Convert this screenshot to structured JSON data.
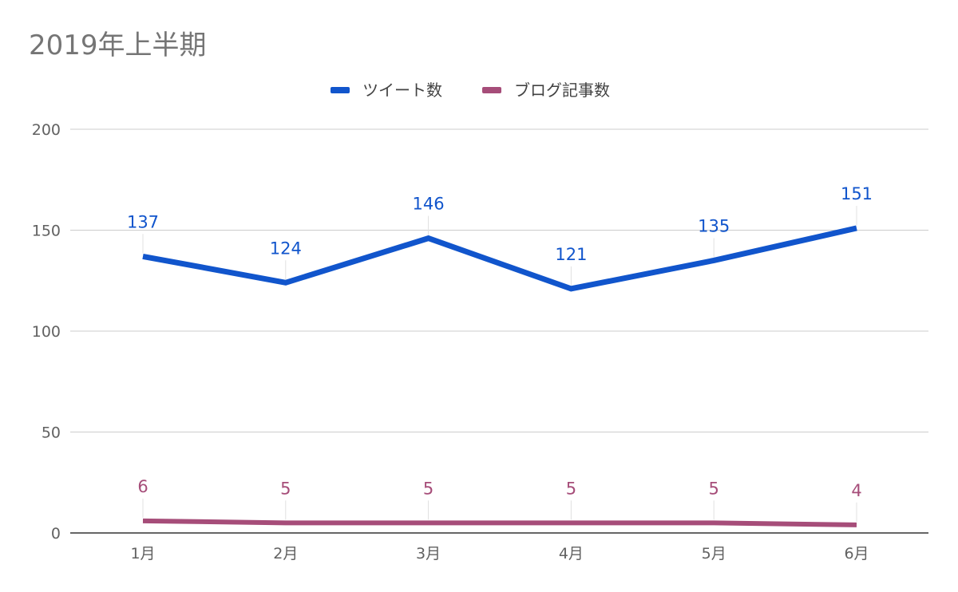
{
  "chart_data": {
    "type": "line",
    "title": "2019年上半期",
    "xlabel": "",
    "ylabel": "",
    "categories": [
      "1月",
      "2月",
      "3月",
      "4月",
      "5月",
      "6月"
    ],
    "series": [
      {
        "name": "ツイート数",
        "color": "#1155cc",
        "values": [
          137,
          124,
          146,
          121,
          135,
          151
        ]
      },
      {
        "name": "ブログ記事数",
        "color": "#a64d79",
        "values": [
          6,
          5,
          5,
          5,
          5,
          4
        ]
      }
    ],
    "ylim": [
      0,
      200
    ],
    "yticks": [
      0,
      50,
      100,
      150,
      200
    ],
    "grid": true,
    "legend_position": "top-center",
    "data_labels": true
  }
}
